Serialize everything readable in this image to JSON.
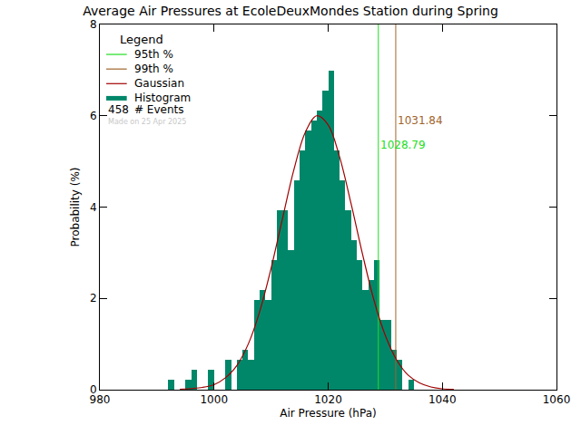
{
  "chart_data": {
    "type": "histogram",
    "title": "Average Air Pressures at EcoleDeuxMondes Station during Spring",
    "x_label": "Air Pressure (hPa)",
    "y_label": "Probability (%)",
    "xlim": [
      980,
      1060
    ],
    "xticks": [
      980,
      1000,
      1020,
      1040,
      1060
    ],
    "ylim": [
      0,
      8
    ],
    "yticks": [
      0,
      2,
      4,
      6,
      8
    ],
    "grid": false,
    "legend": "upper left",
    "legend_title": "Legend",
    "series": [
      {
        "name": "95th %",
        "type": "vline",
        "color": "#22dd22",
        "x": 1028.79,
        "data_labels": true
      },
      {
        "name": "99th %",
        "type": "vline",
        "color": "#a0642a",
        "x": 1031.84,
        "data_labels": true
      },
      {
        "name": "Gaussian",
        "type": "line",
        "color": "#a00000",
        "x": [
          994,
          998,
          1000,
          1002,
          1004,
          1006,
          1008,
          1010,
          1012,
          1014,
          1016,
          1018,
          1020,
          1022,
          1024,
          1026,
          1028,
          1030,
          1032,
          1034,
          1036,
          1038,
          1040,
          1042
        ],
        "values": [
          0.01,
          0.05,
          0.11,
          0.26,
          0.53,
          1.0,
          1.71,
          2.66,
          3.75,
          4.82,
          5.64,
          6.0,
          5.8,
          5.1,
          4.08,
          2.98,
          1.97,
          1.19,
          0.65,
          0.32,
          0.15,
          0.06,
          0.02,
          0.01
        ]
      },
      {
        "name": "Histogram",
        "type": "bar",
        "color": "#00876a",
        "bins": [
          992,
          993,
          994,
          995,
          996,
          997,
          998,
          999,
          1000,
          1001,
          1002,
          1003,
          1004,
          1005,
          1006,
          1007,
          1008,
          1009,
          1010,
          1011,
          1012,
          1013,
          1014,
          1015,
          1016,
          1017,
          1018,
          1019,
          1020,
          1021,
          1022,
          1023,
          1024,
          1025,
          1026,
          1027,
          1028,
          1029,
          1030,
          1031,
          1032,
          1033,
          1034,
          1035
        ],
        "values": [
          0.22,
          0,
          0,
          0.22,
          0.44,
          0,
          0,
          0.44,
          0,
          0,
          0.66,
          0,
          0.66,
          0.87,
          0.66,
          1.97,
          2.18,
          1.97,
          2.84,
          3.93,
          3.93,
          3.06,
          4.59,
          5.24,
          5.68,
          5.9,
          6.11,
          6.55,
          6.99,
          5.24,
          4.59,
          3.93,
          3.28,
          2.84,
          2.18,
          2.4,
          2.84,
          1.53,
          1.53,
          0.87,
          0.66,
          0,
          0.22
        ]
      }
    ],
    "annotations": [
      {
        "text": "# Events",
        "value": 458
      },
      {
        "text": "Made on 25 Apr 2025"
      }
    ]
  }
}
